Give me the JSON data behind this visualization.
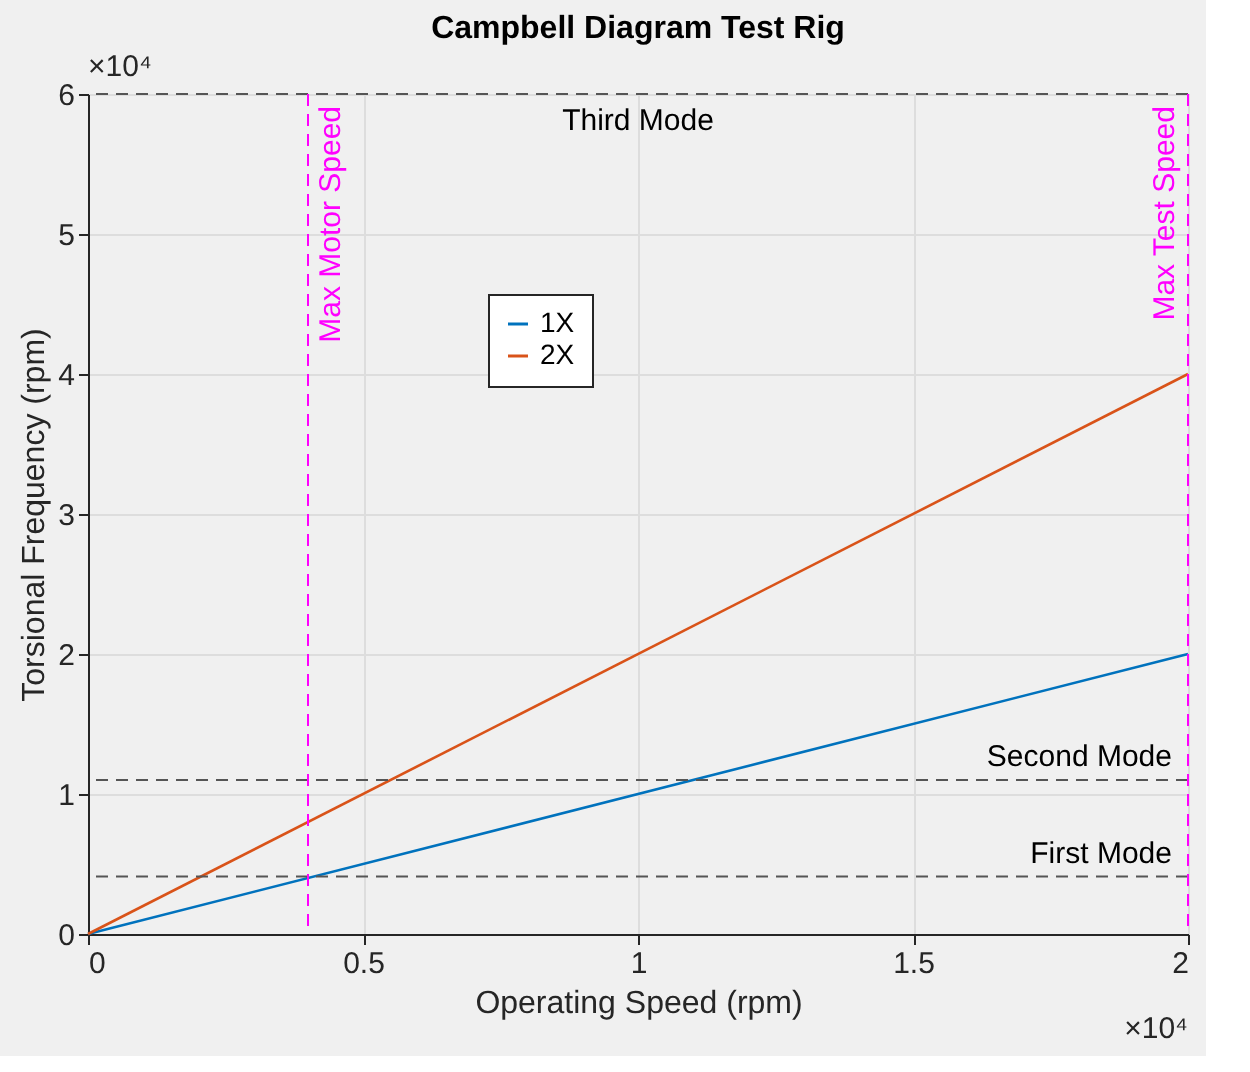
{
  "chart_data": {
    "type": "line",
    "title": "Campbell Diagram Test Rig",
    "xlabel": "Operating Speed (rpm)",
    "ylabel": "Torsional Frequency (rpm)",
    "x": [
      0,
      2
    ],
    "series": [
      {
        "name": "1X",
        "color": "#0072bd",
        "values": [
          0,
          2
        ]
      },
      {
        "name": "2X",
        "color": "#d95319",
        "values": [
          0,
          4
        ]
      }
    ],
    "xlim": [
      0,
      2
    ],
    "ylim": [
      0,
      6
    ],
    "xticks": [
      0,
      0.5,
      1,
      1.5,
      2
    ],
    "yticks": [
      0,
      1,
      2,
      3,
      4,
      5,
      6
    ],
    "ref_lines": [
      {
        "axis": "y",
        "value": 0.41,
        "label": "First Mode",
        "color": "#555555",
        "line_style": "dashed"
      },
      {
        "axis": "y",
        "value": 1.1,
        "label": "Second Mode",
        "color": "#555555",
        "line_style": "dashed"
      },
      {
        "axis": "y",
        "value": 6,
        "label": "Third Mode",
        "color": "#555555",
        "line_style": "dashed"
      },
      {
        "axis": "x",
        "value": 0.4,
        "label": "Max Motor Speed",
        "color": "#ff00ff",
        "line_style": "dashed"
      },
      {
        "axis": "x",
        "value": 2,
        "label": "Max Test Speed",
        "color": "#ff00ff",
        "line_style": "dashed"
      }
    ],
    "annotations": [
      "×10⁴",
      "×10⁴"
    ],
    "grid": true,
    "legend": "left",
    "marker": "none",
    "line_style": "solid"
  }
}
